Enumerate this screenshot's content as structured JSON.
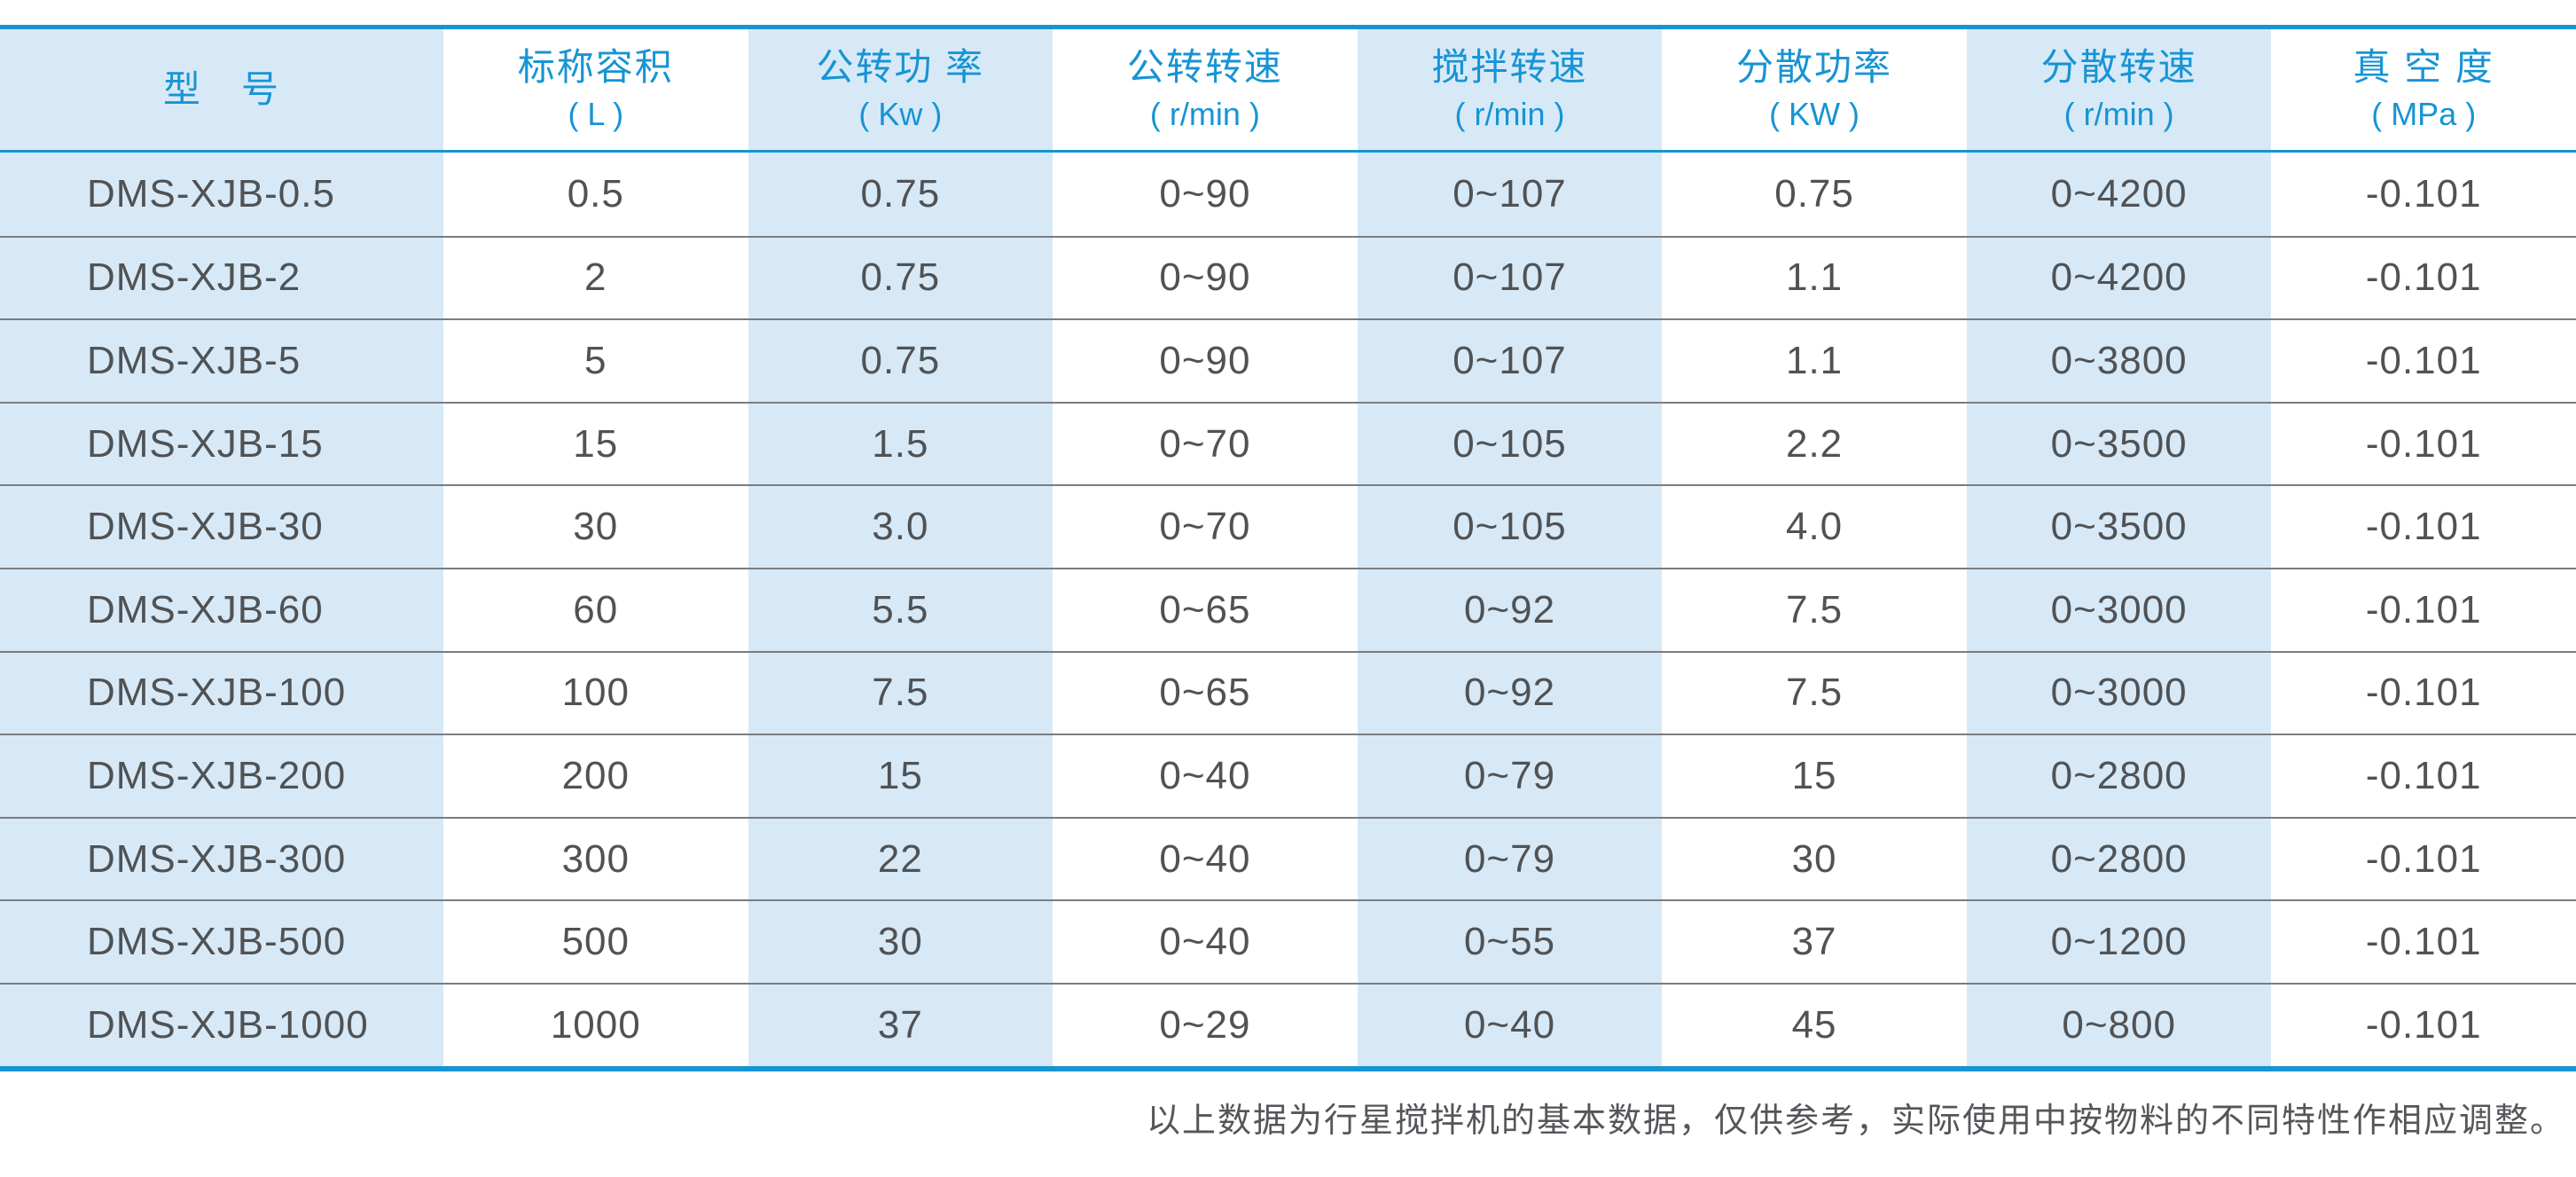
{
  "table": {
    "columns": [
      {
        "label": "型　号",
        "unit": ""
      },
      {
        "label": "标称容积",
        "unit": "( L )"
      },
      {
        "label": "公转功 率",
        "unit": "( Kw )"
      },
      {
        "label": "公转转速",
        "unit": "( r/min )"
      },
      {
        "label": "搅拌转速",
        "unit": "( r/min )"
      },
      {
        "label": "分散功率",
        "unit": "( KW )"
      },
      {
        "label": "分散转速",
        "unit": "( r/min )"
      },
      {
        "label": "真 空 度",
        "unit": "( MPa )"
      }
    ],
    "rows": [
      [
        "DMS-XJB-0.5",
        "0.5",
        "0.75",
        "0~90",
        "0~107",
        "0.75",
        "0~4200",
        "-0.101"
      ],
      [
        "DMS-XJB-2",
        "2",
        "0.75",
        "0~90",
        "0~107",
        "1.1",
        "0~4200",
        "-0.101"
      ],
      [
        "DMS-XJB-5",
        "5",
        "0.75",
        "0~90",
        "0~107",
        "1.1",
        "0~3800",
        "-0.101"
      ],
      [
        "DMS-XJB-15",
        "15",
        "1.5",
        "0~70",
        "0~105",
        "2.2",
        "0~3500",
        "-0.101"
      ],
      [
        "DMS-XJB-30",
        "30",
        "3.0",
        "0~70",
        "0~105",
        "4.0",
        "0~3500",
        "-0.101"
      ],
      [
        "DMS-XJB-60",
        "60",
        "5.5",
        "0~65",
        "0~92",
        "7.5",
        "0~3000",
        "-0.101"
      ],
      [
        "DMS-XJB-100",
        "100",
        "7.5",
        "0~65",
        "0~92",
        "7.5",
        "0~3000",
        "-0.101"
      ],
      [
        "DMS-XJB-200",
        "200",
        "15",
        "0~40",
        "0~79",
        "15",
        "0~2800",
        "-0.101"
      ],
      [
        "DMS-XJB-300",
        "300",
        "22",
        "0~40",
        "0~79",
        "30",
        "0~2800",
        "-0.101"
      ],
      [
        "DMS-XJB-500",
        "500",
        "30",
        "0~40",
        "0~55",
        "37",
        "0~1200",
        "-0.101"
      ],
      [
        "DMS-XJB-1000",
        "1000",
        "37",
        "0~29",
        "0~40",
        "45",
        "0~800",
        "-0.101"
      ]
    ]
  },
  "footnote": "以上数据为行星搅拌机的基本数据，仅供参考，实际使用中按物料的不同特性作相应调整。",
  "colors": {
    "accent_blue": "#1794d4",
    "stripe_blue": "#d7e9f7",
    "body_text_gray": "#505254",
    "separator_gray": "#7b7c80",
    "footnote_gray": "#55565a"
  }
}
